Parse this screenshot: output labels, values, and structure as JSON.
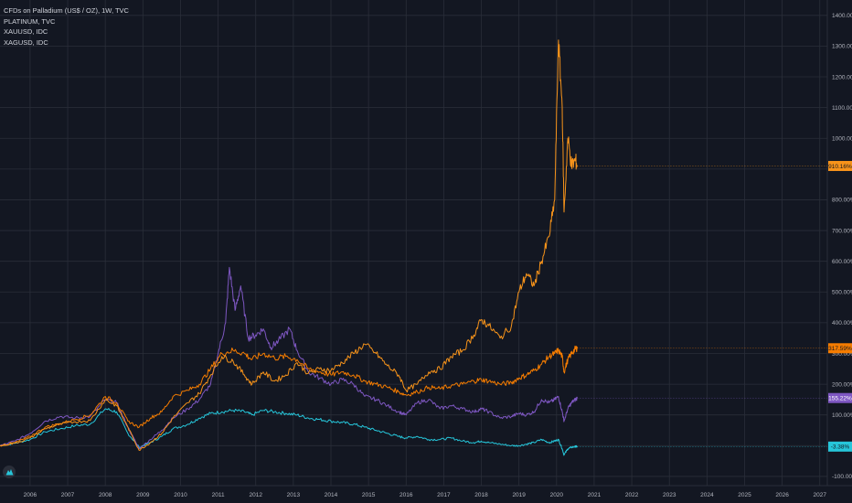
{
  "colors": {
    "background": "#131722",
    "grid": "#2a2e39",
    "text": "#b2b5be",
    "palladium": "#f7931a",
    "platinum": "#f57c00",
    "gold": "#7e57c2",
    "silver": "#26c6da"
  },
  "legend": [
    "CFDs on Palladium (US$ / OZ), 1W, TVC",
    "PLATINUM, TVC",
    "XAUUSD, IDC",
    "XAGUSD, IDC"
  ],
  "logo_icon": "tradingview-logo-icon",
  "chart_data": {
    "type": "line",
    "x_ticks": [
      "2006",
      "2007",
      "2008",
      "2009",
      "2010",
      "2011",
      "2012",
      "2013",
      "2014",
      "2015",
      "2016",
      "2017",
      "2018",
      "2019",
      "2020",
      "2021",
      "2022",
      "2023",
      "2024",
      "2025",
      "2026",
      "2027"
    ],
    "y_ticks": [
      "1400.00%",
      "1300.00%",
      "1200.00%",
      "1100.00%",
      "1000.00%",
      "900.00%",
      "800.00%",
      "700.00%",
      "600.00%",
      "500.00%",
      "400.00%",
      "300.00%",
      "200.00%",
      "100.00%",
      "-100.00%"
    ],
    "ylim": [
      -130,
      1450
    ],
    "xlim": [
      2005.2,
      2027.2
    ],
    "series": [
      {
        "key": "palladium",
        "last_label": "910.16%",
        "last_value": 910,
        "points": [
          [
            2005.2,
            0
          ],
          [
            2005.6,
            8
          ],
          [
            2006.0,
            25
          ],
          [
            2006.4,
            55
          ],
          [
            2006.8,
            70
          ],
          [
            2007.2,
            78
          ],
          [
            2007.6,
            82
          ],
          [
            2008.0,
            150
          ],
          [
            2008.3,
            130
          ],
          [
            2008.6,
            60
          ],
          [
            2008.9,
            -15
          ],
          [
            2009.2,
            10
          ],
          [
            2009.5,
            40
          ],
          [
            2009.8,
            90
          ],
          [
            2010.2,
            140
          ],
          [
            2010.5,
            170
          ],
          [
            2010.8,
            230
          ],
          [
            2011.1,
            290
          ],
          [
            2011.4,
            275
          ],
          [
            2011.7,
            230
          ],
          [
            2011.9,
            200
          ],
          [
            2012.2,
            240
          ],
          [
            2012.5,
            210
          ],
          [
            2012.8,
            230
          ],
          [
            2013.1,
            270
          ],
          [
            2013.4,
            235
          ],
          [
            2013.7,
            250
          ],
          [
            2014.0,
            245
          ],
          [
            2014.3,
            270
          ],
          [
            2014.6,
            300
          ],
          [
            2014.9,
            330
          ],
          [
            2015.2,
            300
          ],
          [
            2015.5,
            260
          ],
          [
            2015.8,
            230
          ],
          [
            2016.0,
            180
          ],
          [
            2016.3,
            200
          ],
          [
            2016.6,
            240
          ],
          [
            2016.9,
            250
          ],
          [
            2017.2,
            290
          ],
          [
            2017.5,
            310
          ],
          [
            2017.8,
            360
          ],
          [
            2018.0,
            410
          ],
          [
            2018.2,
            390
          ],
          [
            2018.5,
            350
          ],
          [
            2018.8,
            390
          ],
          [
            2019.0,
            500
          ],
          [
            2019.2,
            560
          ],
          [
            2019.4,
            520
          ],
          [
            2019.6,
            600
          ],
          [
            2019.8,
            680
          ],
          [
            2019.95,
            800
          ],
          [
            2020.05,
            1320
          ],
          [
            2020.15,
            1100
          ],
          [
            2020.2,
            760
          ],
          [
            2020.3,
            1000
          ],
          [
            2020.4,
            910
          ],
          [
            2020.5,
            930
          ],
          [
            2020.55,
            910
          ]
        ]
      },
      {
        "key": "platinum",
        "last_label": "317.59%",
        "last_value": 317,
        "points": [
          [
            2005.2,
            0
          ],
          [
            2005.6,
            10
          ],
          [
            2006.0,
            30
          ],
          [
            2006.4,
            60
          ],
          [
            2006.8,
            72
          ],
          [
            2007.2,
            85
          ],
          [
            2007.6,
            100
          ],
          [
            2008.0,
            160
          ],
          [
            2008.3,
            140
          ],
          [
            2008.6,
            80
          ],
          [
            2008.9,
            60
          ],
          [
            2009.2,
            90
          ],
          [
            2009.5,
            110
          ],
          [
            2009.8,
            160
          ],
          [
            2010.2,
            180
          ],
          [
            2010.5,
            200
          ],
          [
            2010.8,
            250
          ],
          [
            2011.1,
            300
          ],
          [
            2011.4,
            310
          ],
          [
            2011.7,
            300
          ],
          [
            2011.9,
            280
          ],
          [
            2012.2,
            300
          ],
          [
            2012.5,
            285
          ],
          [
            2012.8,
            290
          ],
          [
            2013.1,
            280
          ],
          [
            2013.4,
            250
          ],
          [
            2013.7,
            240
          ],
          [
            2014.0,
            230
          ],
          [
            2014.3,
            240
          ],
          [
            2014.6,
            230
          ],
          [
            2014.9,
            210
          ],
          [
            2015.2,
            200
          ],
          [
            2015.5,
            190
          ],
          [
            2015.8,
            175
          ],
          [
            2016.0,
            165
          ],
          [
            2016.3,
            175
          ],
          [
            2016.6,
            190
          ],
          [
            2016.9,
            185
          ],
          [
            2017.2,
            195
          ],
          [
            2017.5,
            200
          ],
          [
            2017.8,
            210
          ],
          [
            2018.0,
            215
          ],
          [
            2018.2,
            210
          ],
          [
            2018.5,
            200
          ],
          [
            2018.8,
            205
          ],
          [
            2019.0,
            220
          ],
          [
            2019.2,
            230
          ],
          [
            2019.4,
            245
          ],
          [
            2019.6,
            265
          ],
          [
            2019.8,
            290
          ],
          [
            2019.95,
            300
          ],
          [
            2020.05,
            310
          ],
          [
            2020.15,
            290
          ],
          [
            2020.2,
            240
          ],
          [
            2020.3,
            280
          ],
          [
            2020.4,
            300
          ],
          [
            2020.5,
            315
          ],
          [
            2020.55,
            317
          ]
        ]
      },
      {
        "key": "gold",
        "last_label": "155.22%",
        "last_value": 155,
        "points": [
          [
            2005.2,
            0
          ],
          [
            2005.6,
            15
          ],
          [
            2006.0,
            40
          ],
          [
            2006.4,
            80
          ],
          [
            2006.8,
            95
          ],
          [
            2007.2,
            90
          ],
          [
            2007.6,
            95
          ],
          [
            2008.0,
            150
          ],
          [
            2008.3,
            140
          ],
          [
            2008.6,
            60
          ],
          [
            2008.9,
            -10
          ],
          [
            2009.2,
            20
          ],
          [
            2009.5,
            50
          ],
          [
            2009.8,
            90
          ],
          [
            2010.2,
            120
          ],
          [
            2010.5,
            150
          ],
          [
            2010.8,
            200
          ],
          [
            2011.0,
            300
          ],
          [
            2011.2,
            400
          ],
          [
            2011.3,
            580
          ],
          [
            2011.45,
            440
          ],
          [
            2011.6,
            520
          ],
          [
            2011.8,
            350
          ],
          [
            2012.0,
            360
          ],
          [
            2012.2,
            380
          ],
          [
            2012.4,
            320
          ],
          [
            2012.6,
            340
          ],
          [
            2012.9,
            380
          ],
          [
            2013.1,
            310
          ],
          [
            2013.4,
            240
          ],
          [
            2013.7,
            220
          ],
          [
            2014.0,
            200
          ],
          [
            2014.3,
            215
          ],
          [
            2014.6,
            200
          ],
          [
            2014.9,
            160
          ],
          [
            2015.2,
            150
          ],
          [
            2015.5,
            130
          ],
          [
            2015.8,
            110
          ],
          [
            2016.0,
            100
          ],
          [
            2016.3,
            140
          ],
          [
            2016.6,
            150
          ],
          [
            2016.9,
            120
          ],
          [
            2017.2,
            130
          ],
          [
            2017.5,
            120
          ],
          [
            2017.8,
            110
          ],
          [
            2018.0,
            120
          ],
          [
            2018.2,
            110
          ],
          [
            2018.5,
            90
          ],
          [
            2018.8,
            95
          ],
          [
            2019.0,
            105
          ],
          [
            2019.2,
            100
          ],
          [
            2019.4,
            110
          ],
          [
            2019.6,
            150
          ],
          [
            2019.8,
            140
          ],
          [
            2019.95,
            150
          ],
          [
            2020.05,
            160
          ],
          [
            2020.15,
            110
          ],
          [
            2020.2,
            80
          ],
          [
            2020.3,
            120
          ],
          [
            2020.4,
            140
          ],
          [
            2020.5,
            150
          ],
          [
            2020.55,
            155
          ]
        ]
      },
      {
        "key": "silver",
        "last_label": "-3.38%",
        "last_value": -3,
        "points": [
          [
            2005.2,
            0
          ],
          [
            2005.6,
            8
          ],
          [
            2006.0,
            20
          ],
          [
            2006.4,
            45
          ],
          [
            2006.8,
            55
          ],
          [
            2007.2,
            65
          ],
          [
            2007.6,
            70
          ],
          [
            2008.0,
            120
          ],
          [
            2008.3,
            110
          ],
          [
            2008.6,
            40
          ],
          [
            2008.9,
            -5
          ],
          [
            2009.2,
            10
          ],
          [
            2009.5,
            30
          ],
          [
            2009.8,
            55
          ],
          [
            2010.2,
            70
          ],
          [
            2010.5,
            90
          ],
          [
            2010.8,
            105
          ],
          [
            2011.1,
            110
          ],
          [
            2011.4,
            115
          ],
          [
            2011.7,
            110
          ],
          [
            2011.9,
            100
          ],
          [
            2012.2,
            115
          ],
          [
            2012.5,
            110
          ],
          [
            2012.8,
            105
          ],
          [
            2013.1,
            100
          ],
          [
            2013.4,
            90
          ],
          [
            2013.7,
            85
          ],
          [
            2014.0,
            80
          ],
          [
            2014.3,
            75
          ],
          [
            2014.6,
            70
          ],
          [
            2014.9,
            60
          ],
          [
            2015.2,
            50
          ],
          [
            2015.5,
            40
          ],
          [
            2015.8,
            30
          ],
          [
            2016.0,
            25
          ],
          [
            2016.3,
            30
          ],
          [
            2016.6,
            20
          ],
          [
            2016.9,
            20
          ],
          [
            2017.2,
            25
          ],
          [
            2017.5,
            15
          ],
          [
            2017.8,
            10
          ],
          [
            2018.0,
            15
          ],
          [
            2018.2,
            10
          ],
          [
            2018.5,
            5
          ],
          [
            2018.8,
            0
          ],
          [
            2019.0,
            0
          ],
          [
            2019.2,
            5
          ],
          [
            2019.4,
            10
          ],
          [
            2019.6,
            20
          ],
          [
            2019.8,
            10
          ],
          [
            2019.95,
            15
          ],
          [
            2020.05,
            20
          ],
          [
            2020.15,
            -10
          ],
          [
            2020.2,
            -30
          ],
          [
            2020.3,
            -10
          ],
          [
            2020.4,
            -5
          ],
          [
            2020.5,
            -3
          ],
          [
            2020.55,
            -3
          ]
        ]
      }
    ]
  }
}
